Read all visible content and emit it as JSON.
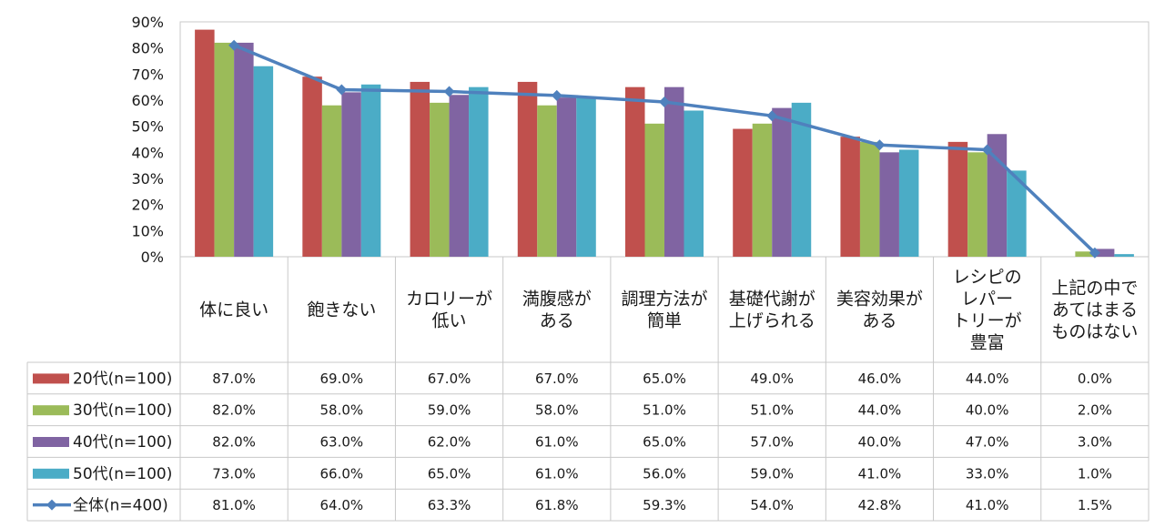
{
  "chart_data": {
    "type": "bar",
    "title": "",
    "xlabel": "",
    "ylabel": "",
    "ylim": [
      0,
      90
    ],
    "yticks": [
      "0%",
      "10%",
      "20%",
      "30%",
      "40%",
      "50%",
      "60%",
      "70%",
      "80%",
      "90%"
    ],
    "categories": [
      [
        "体に良い"
      ],
      [
        "飽きない"
      ],
      [
        "カロリーが",
        "低い"
      ],
      [
        "満腹感が",
        "ある"
      ],
      [
        "調理方法が",
        "簡単"
      ],
      [
        "基礎代謝が",
        "上げられる"
      ],
      [
        "美容効果が",
        "ある"
      ],
      [
        "レシピの",
        "レパー",
        "トリーが",
        "豊富"
      ],
      [
        "上記の中で",
        "あてはまる",
        "ものはない"
      ]
    ],
    "series": [
      {
        "name": "20代(n=100)",
        "kind": "bar",
        "color": "#c0504d",
        "values": [
          87,
          69,
          67,
          67,
          65,
          49,
          46,
          44,
          0
        ],
        "labels": [
          "87.0%",
          "69.0%",
          "67.0%",
          "67.0%",
          "65.0%",
          "49.0%",
          "46.0%",
          "44.0%",
          "0.0%"
        ]
      },
      {
        "name": "30代(n=100)",
        "kind": "bar",
        "color": "#9bbb59",
        "values": [
          82,
          58,
          59,
          58,
          51,
          51,
          44,
          40,
          2
        ],
        "labels": [
          "82.0%",
          "58.0%",
          "59.0%",
          "58.0%",
          "51.0%",
          "51.0%",
          "44.0%",
          "40.0%",
          "2.0%"
        ]
      },
      {
        "name": "40代(n=100)",
        "kind": "bar",
        "color": "#8064a2",
        "values": [
          82,
          63,
          62,
          61,
          65,
          57,
          40,
          47,
          3
        ],
        "labels": [
          "82.0%",
          "63.0%",
          "62.0%",
          "61.0%",
          "65.0%",
          "57.0%",
          "40.0%",
          "47.0%",
          "3.0%"
        ]
      },
      {
        "name": "50代(n=100)",
        "kind": "bar",
        "color": "#4bacc6",
        "values": [
          73,
          66,
          65,
          61,
          56,
          59,
          41,
          33,
          1
        ],
        "labels": [
          "73.0%",
          "66.0%",
          "65.0%",
          "61.0%",
          "56.0%",
          "59.0%",
          "41.0%",
          "33.0%",
          "1.0%"
        ]
      },
      {
        "name": "全体(n=400)",
        "kind": "line",
        "color": "#4f81bd",
        "values": [
          81,
          64,
          63.3,
          61.8,
          59.3,
          54,
          42.8,
          41,
          1.5
        ],
        "labels": [
          "81.0%",
          "64.0%",
          "63.3%",
          "61.8%",
          "59.3%",
          "54.0%",
          "42.8%",
          "41.0%",
          "1.5%"
        ]
      }
    ]
  }
}
